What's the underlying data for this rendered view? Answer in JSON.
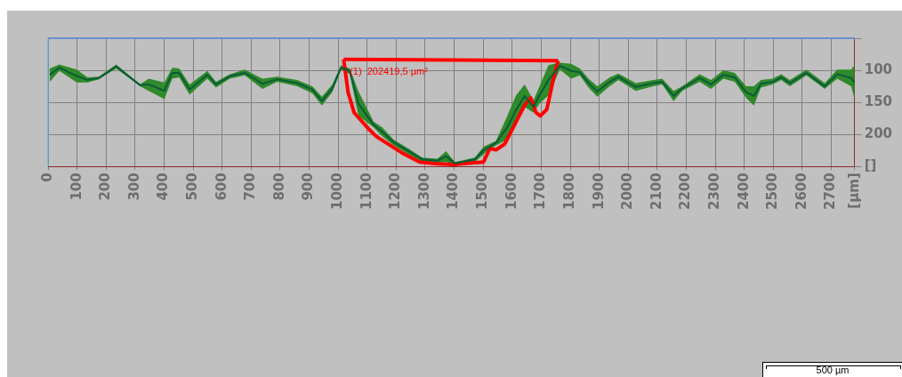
{
  "chart_data": {
    "type": "line",
    "x": [
      6,
      39,
      99,
      136,
      175,
      235,
      317,
      347,
      401,
      428,
      452,
      488,
      549,
      579,
      627,
      678,
      739,
      790,
      859,
      911,
      944,
      980,
      1010,
      1040,
      1070,
      1122,
      1152,
      1191,
      1242,
      1290,
      1342,
      1372,
      1402,
      1471,
      1501,
      1544,
      1583,
      1613,
      1643,
      1673,
      1694,
      1725,
      1764,
      1803,
      1833,
      1863,
      1893,
      1936,
      1966,
      2026,
      2086,
      2117,
      2156,
      2186,
      2246,
      2285,
      2328,
      2367,
      2406,
      2433,
      2457,
      2497,
      2527,
      2557,
      2614,
      2677,
      2720,
      2768,
      2780
    ],
    "series": [
      {
        "color": "#0b5a3a",
        "values": [
          107,
          96,
          109,
          115,
          112,
          94,
          123,
          122,
          132,
          104,
          104,
          130,
          107,
          122,
          109,
          104,
          121,
          114,
          120,
          130,
          148,
          128,
          96,
          101,
          152,
          185,
          196,
          212,
          226,
          239,
          241,
          234,
          245,
          239,
          225,
          213,
          189,
          162,
          140,
          157,
          139,
          115,
          93,
          101,
          103,
          120,
          133,
          118,
          110,
          126,
          120,
          118,
          140,
          128,
          112,
          122,
          107,
          111,
          134,
          140,
          121,
          118,
          111,
          120,
          104,
          125,
          106,
          112,
          119
        ],
        "lower": [
          97,
          91,
          99,
          111,
          110,
          91,
          122,
          113,
          119,
          96,
          97,
          122,
          101,
          118,
          106,
          99,
          113,
          110,
          115,
          125,
          141,
          122,
          92,
          97,
          133,
          180,
          189,
          208,
          222,
          236,
          238,
          226,
          243,
          236,
          219,
          210,
          171,
          139,
          122,
          147,
          125,
          92,
          88,
          90,
          97,
          113,
          125,
          111,
          105,
          120,
          115,
          113,
          132,
          125,
          106,
          115,
          100,
          104,
          125,
          125,
          115,
          113,
          106,
          115,
          99,
          120,
          99,
          99,
          92
        ],
        "upper": [
          118,
          101,
          119,
          119,
          114,
          97,
          125,
          132,
          145,
          113,
          111,
          138,
          113,
          127,
          113,
          108,
          129,
          118,
          125,
          136,
          155,
          134,
          99,
          106,
          171,
          189,
          203,
          217,
          231,
          243,
          244,
          243,
          247,
          243,
          231,
          217,
          208,
          185,
          157,
          166,
          152,
          139,
          99,
          113,
          108,
          127,
          141,
          125,
          115,
          132,
          125,
          122,
          148,
          132,
          118,
          129,
          113,
          118,
          143,
          155,
          127,
          122,
          115,
          125,
          108,
          129,
          113,
          125,
          145
        ]
      },
      {
        "type": "line",
        "color": "#ff0000",
        "x": [
          1019,
          1758
        ],
        "values": [
          83,
          85
        ]
      },
      {
        "type": "line",
        "color": "#ff0000",
        "x": [
          1019,
          1034,
          1055,
          1100,
          1131,
          1221,
          1281,
          1342,
          1402,
          1441,
          1501,
          1523,
          1544,
          1574,
          1598,
          1643,
          1664,
          1682,
          1697,
          1719,
          1728,
          1743,
          1758
        ],
        "values": [
          83,
          134,
          166,
          189,
          203,
          229,
          243,
          246,
          247,
          245,
          243,
          222,
          224,
          215,
          194,
          154,
          143,
          166,
          171,
          161,
          143,
          111,
          85
        ]
      }
    ],
    "xlim": [
      0,
      2780
    ],
    "xticks": [
      0,
      100,
      200,
      300,
      400,
      500,
      600,
      700,
      800,
      900,
      1000,
      1100,
      1200,
      1300,
      1400,
      1500,
      1600,
      1700,
      1800,
      1900,
      2000,
      2100,
      2200,
      2300,
      2400,
      2500,
      2600,
      2700,
      {
        "value": 2780,
        "label": "[µm]"
      }
    ],
    "ylim": [
      250,
      50
    ],
    "yticks": [
      {
        "value": 50,
        "label": null
      },
      100,
      150,
      200,
      {
        "value": 250,
        "label": "[]"
      }
    ],
    "grid": true,
    "legend": false,
    "marker": "none",
    "annotations": [
      {
        "text": "(1)  202419,5 µm²",
        "x": 1040,
        "y": 103
      },
      "500 µm"
    ]
  }
}
